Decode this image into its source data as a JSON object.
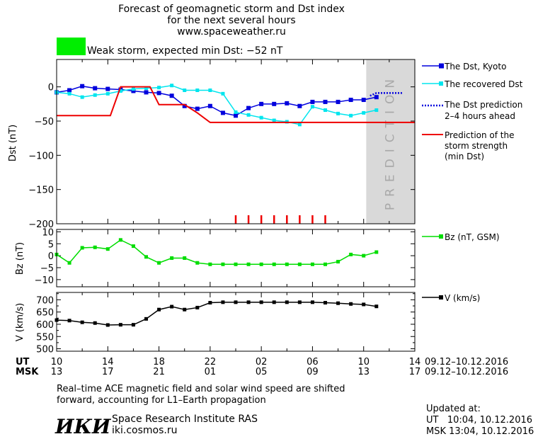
{
  "header": {
    "title_line1": "Forecast of geomagnetic storm and Dst index",
    "title_line2": "for the next several hours",
    "site": "www.spaceweather.ru",
    "storm_label": "Weak storm, expected min Dst: −52 nT"
  },
  "colors": {
    "storm_box": "#00ee00",
    "dst_kyoto": "#0000dd",
    "dst_recovered": "#00e5ee",
    "storm_strength": "#ee0000",
    "bz": "#00dd00",
    "v": "#000000",
    "prediction_band": "#d9d9d9"
  },
  "prediction_band_label": "PREDICTION",
  "chart_data": [
    {
      "type": "line",
      "ylabel": "Dst (nT)",
      "ylim": [
        -200,
        40
      ],
      "yticks": [
        0,
        -50,
        -100,
        -150,
        -200
      ],
      "ytick_labels": [
        "0",
        "−50",
        "−100",
        "−150",
        "−200"
      ],
      "xlim": [
        10,
        38
      ],
      "prediction_start_hour": 34.2,
      "series": [
        {
          "name": "The Dst, Kyoto",
          "marker": "square",
          "x": [
            10,
            11,
            12,
            13,
            14,
            15,
            16,
            17,
            18,
            19,
            20,
            21,
            22,
            23,
            24,
            25,
            26,
            27,
            28,
            29,
            30,
            31,
            32,
            33,
            34,
            35
          ],
          "y": [
            -8,
            -5,
            1,
            -2,
            -3,
            -4,
            -6,
            -8,
            -9,
            -13,
            -28,
            -32,
            -28,
            -38,
            -42,
            -31,
            -25,
            -25,
            -24,
            -28,
            -22,
            -22,
            -22,
            -19,
            -19,
            -15
          ]
        },
        {
          "name": "The recovered Dst",
          "marker": "square",
          "x": [
            10,
            11,
            12,
            13,
            14,
            15,
            16,
            17,
            18,
            19,
            20,
            21,
            22,
            23,
            24,
            25,
            26,
            27,
            28,
            29,
            30,
            31,
            32,
            33,
            34,
            35
          ],
          "y": [
            -8,
            -10,
            -15,
            -12,
            -10,
            -6,
            -3,
            -2,
            -1,
            2,
            -5,
            -5,
            -5,
            -10,
            -37,
            -41,
            -45,
            -49,
            -51,
            -55,
            -29,
            -34,
            -39,
            -42,
            -38,
            -34
          ]
        },
        {
          "name": "The Dst prediction 2–4 hours ahead",
          "style": "dotted",
          "x": [
            34.5,
            35,
            36,
            37
          ],
          "y": [
            -13,
            -9,
            -9,
            -9
          ]
        },
        {
          "name": "Prediction of the storm strength (min Dst)",
          "style": "step",
          "x": [
            10,
            14.2,
            15,
            17.3,
            18,
            19,
            20,
            21,
            22,
            23,
            24,
            25,
            38
          ],
          "y": [
            -42,
            -42,
            0,
            0,
            -26,
            -26,
            -26,
            -38,
            -52,
            -52,
            -52,
            -52,
            -52
          ]
        }
      ],
      "event_markers_x": [
        24,
        25,
        26,
        27,
        28,
        29,
        30,
        31
      ]
    },
    {
      "type": "line",
      "ylabel": "Bz (nT)",
      "ylim": [
        -13,
        11
      ],
      "yticks": [
        10,
        5,
        0,
        -5,
        -10
      ],
      "ytick_labels": [
        "10",
        "5",
        "0",
        "−5",
        "−10"
      ],
      "series": [
        {
          "name": "Bz (nT, GSM)",
          "marker": "square",
          "x": [
            10,
            11,
            12,
            13,
            14,
            15,
            16,
            17,
            18,
            19,
            20,
            21,
            22,
            23,
            24,
            25,
            26,
            27,
            28,
            29,
            30,
            31,
            32,
            33,
            34,
            35
          ],
          "y": [
            0.5,
            -3,
            3.3,
            3.5,
            2.8,
            6.6,
            4,
            -0.5,
            -3,
            -1,
            -1,
            -3,
            -3.6,
            -3.6,
            -3.6,
            -3.6,
            -3.6,
            -3.6,
            -3.6,
            -3.6,
            -3.6,
            -3.6,
            -2.5,
            0.5,
            0,
            1.5
          ]
        }
      ]
    },
    {
      "type": "line",
      "ylabel": "V (km/s)",
      "ylim": [
        490,
        730
      ],
      "yticks": [
        700,
        650,
        600,
        550,
        500
      ],
      "ytick_labels": [
        "700",
        "650",
        "600",
        "550",
        "500"
      ],
      "minor_ticks": [
        725,
        675,
        625,
        575,
        525
      ],
      "series": [
        {
          "name": "V (km/s)",
          "marker": "square",
          "x": [
            10,
            11,
            12,
            13,
            14,
            15,
            16,
            17,
            18,
            19,
            20,
            21,
            22,
            23,
            24,
            25,
            26,
            27,
            28,
            29,
            30,
            31,
            32,
            33,
            34,
            35
          ],
          "y": [
            617,
            615,
            608,
            605,
            597,
            598,
            598,
            622,
            660,
            672,
            660,
            668,
            688,
            690,
            690,
            690,
            690,
            690,
            690,
            690,
            690,
            688,
            686,
            683,
            681,
            673
          ]
        }
      ]
    }
  ],
  "x_axis": {
    "ut_label": "UT",
    "msk_label": "MSK",
    "ut_ticks": [
      "10",
      "14",
      "18",
      "22",
      "02",
      "06",
      "10",
      "14"
    ],
    "msk_ticks": [
      "13",
      "17",
      "21",
      "01",
      "05",
      "09",
      "13",
      "17"
    ],
    "ut_range": "09.12–10.12.2016",
    "msk_range": "09.12–10.12.2016"
  },
  "legend": {
    "dst_kyoto": "The Dst, Kyoto",
    "dst_recovered": "The recovered Dst",
    "dst_prediction_line1": "The Dst prediction",
    "dst_prediction_line2": "2–4 hours ahead",
    "storm_line1": "Prediction of the",
    "storm_line2": "storm strength",
    "storm_line3": "(min Dst)",
    "bz": "Bz (nT, GSM)",
    "v": "V (km/s)"
  },
  "footer": {
    "note_line1": "Real–time ACE magnetic field and solar wind speed are shifted",
    "note_line2": "forward, accounting for L1–Earth propagation",
    "logo": "ИКИ",
    "institute": "Space Research Institute RAS",
    "institute_url": "iki.cosmos.ru",
    "updated_label": "Updated at:",
    "updated_ut": "UT   10:04, 10.12.2016",
    "updated_msk": "MSK 13:04, 10.12.2016"
  }
}
